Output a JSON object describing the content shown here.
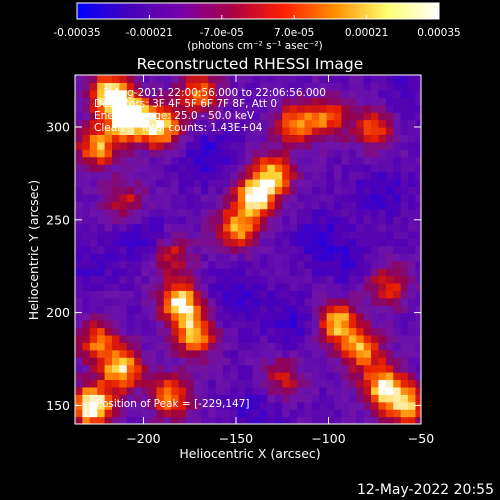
{
  "colorbar": {
    "ticks": [
      "-0.00035",
      "-0.00021",
      "-7.0e-05",
      "7.0e-05",
      "0.00021",
      "0.00035"
    ],
    "tick_values": [
      -0.00035,
      -0.00021,
      -7e-05,
      7e-05,
      0.00021,
      0.00035
    ],
    "range": [
      -0.00035,
      0.00035
    ],
    "units": "(photons cm⁻² s⁻¹ asec⁻²)",
    "colors": [
      "#0000ff",
      "#4400bb",
      "#7700aa",
      "#aa0044",
      "#ff2000",
      "#ff9000",
      "#ffff70",
      "#ffffff"
    ]
  },
  "chart_data": {
    "type": "heatmap",
    "title": "Reconstructed RHESSI Image",
    "xlabel": "Heliocentric X (arcsec)",
    "ylabel": "Heliocentric Y (arcsec)",
    "xlim": [
      -237,
      -50
    ],
    "ylim": [
      140,
      328
    ],
    "xticks": [
      -200,
      -150,
      -100,
      -50
    ],
    "xtick_labels": [
      "−200",
      "−150",
      "−100",
      "−50"
    ],
    "yticks": [
      150,
      200,
      250,
      300
    ],
    "ytick_labels": [
      "150",
      "200",
      "250",
      "300"
    ],
    "annotations": [
      "2-Aug-2011 22:00:56.000 to 22:06:56.000",
      "Detectors: 3F 4F 5F 6F 7F 8F, Att 0",
      "Energy Range: 25.0 - 50.0 keV",
      "Clean     Total counts: 1.43E+04"
    ],
    "peak_label": "Position of Peak = [-229,147]",
    "peak": [
      -229,
      147
    ],
    "hot_regions": [
      {
        "x": -218,
        "y": 318,
        "strength": 0.9
      },
      {
        "x": -207,
        "y": 305,
        "strength": 1.0
      },
      {
        "x": -190,
        "y": 300,
        "strength": 0.75
      },
      {
        "x": -225,
        "y": 290,
        "strength": 0.7
      },
      {
        "x": -170,
        "y": 318,
        "strength": 0.6
      },
      {
        "x": -140,
        "y": 262,
        "strength": 0.85
      },
      {
        "x": -130,
        "y": 275,
        "strength": 0.7
      },
      {
        "x": -150,
        "y": 245,
        "strength": 0.65
      },
      {
        "x": -118,
        "y": 302,
        "strength": 0.6
      },
      {
        "x": -100,
        "y": 305,
        "strength": 0.55
      },
      {
        "x": -75,
        "y": 300,
        "strength": 0.5
      },
      {
        "x": -185,
        "y": 230,
        "strength": 0.45
      },
      {
        "x": -210,
        "y": 260,
        "strength": 0.4
      },
      {
        "x": -180,
        "y": 205,
        "strength": 0.85
      },
      {
        "x": -172,
        "y": 188,
        "strength": 0.7
      },
      {
        "x": -228,
        "y": 150,
        "strength": 1.0
      },
      {
        "x": -212,
        "y": 170,
        "strength": 0.8
      },
      {
        "x": -185,
        "y": 155,
        "strength": 0.65
      },
      {
        "x": -225,
        "y": 185,
        "strength": 0.55
      },
      {
        "x": -95,
        "y": 195,
        "strength": 0.75
      },
      {
        "x": -82,
        "y": 180,
        "strength": 0.65
      },
      {
        "x": -70,
        "y": 160,
        "strength": 0.8
      },
      {
        "x": -58,
        "y": 150,
        "strength": 0.7
      },
      {
        "x": -68,
        "y": 215,
        "strength": 0.5
      },
      {
        "x": -125,
        "y": 165,
        "strength": 0.4
      }
    ],
    "cold_regions": [
      {
        "x": -165,
        "y": 285,
        "strength": 0.9
      },
      {
        "x": -150,
        "y": 210,
        "strength": 0.8
      },
      {
        "x": -200,
        "y": 240,
        "strength": 0.7
      },
      {
        "x": -105,
        "y": 240,
        "strength": 0.75
      },
      {
        "x": -120,
        "y": 195,
        "strength": 0.7
      },
      {
        "x": -140,
        "y": 150,
        "strength": 0.6
      },
      {
        "x": -70,
        "y": 265,
        "strength": 0.65
      },
      {
        "x": -230,
        "y": 225,
        "strength": 0.5
      },
      {
        "x": -60,
        "y": 320,
        "strength": 0.5
      },
      {
        "x": -88,
        "y": 228,
        "strength": 0.6
      }
    ]
  },
  "timestamp": "12-May-2022 20:55"
}
